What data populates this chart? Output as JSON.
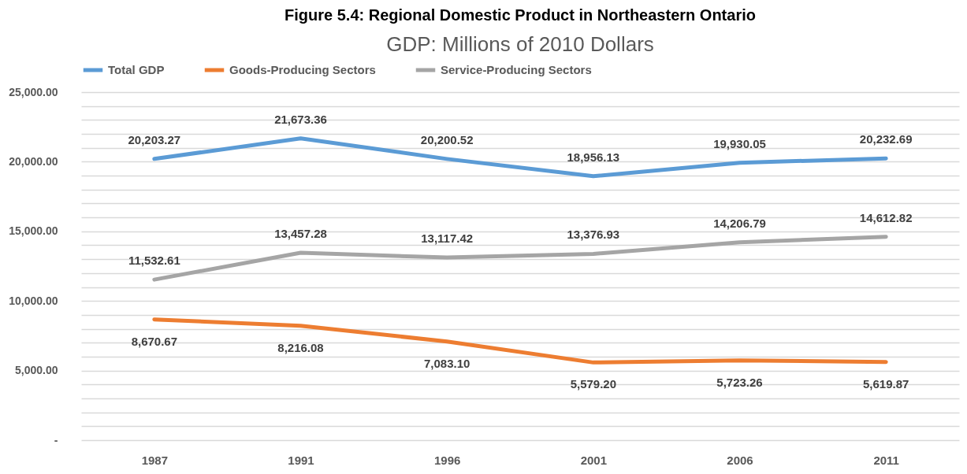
{
  "chart_data": {
    "type": "line",
    "title": "Figure 5.4: Regional Domestic Product in Northeastern Ontario",
    "subtitle": "GDP: Millions of 2010 Dollars",
    "categories": [
      "1987",
      "1991",
      "1996",
      "2001",
      "2006",
      "2011"
    ],
    "series": [
      {
        "name": "Total GDP",
        "color": "#5b9bd5",
        "values": [
          20203.27,
          21673.36,
          20200.52,
          18956.13,
          19930.05,
          20232.69
        ],
        "value_labels": [
          "20,203.27",
          "21,673.36",
          "20,200.52",
          "18,956.13",
          "19,930.05",
          "20,232.69"
        ]
      },
      {
        "name": "Goods-Producing Sectors",
        "color": "#ed7d31",
        "values": [
          8670.67,
          8216.08,
          7083.1,
          5579.2,
          5723.26,
          5619.87
        ],
        "value_labels": [
          "8,670.67",
          "8,216.08",
          "7,083.10",
          "5,579.20",
          "5,723.26",
          "5,619.87"
        ]
      },
      {
        "name": "Service-Producing Sectors",
        "color": "#a5a5a5",
        "values": [
          11532.61,
          13457.28,
          13117.42,
          13376.93,
          14206.79,
          14612.82
        ],
        "value_labels": [
          "11,532.61",
          "13,457.28",
          "13,117.42",
          "13,376.93",
          "14,206.79",
          "14,612.82"
        ]
      }
    ],
    "ylim": [
      0,
      25000
    ],
    "yticks": [
      {
        "value": 0,
        "label": "-"
      },
      {
        "value": 1000,
        "label": null
      },
      {
        "value": 2000,
        "label": null
      },
      {
        "value": 3000,
        "label": null
      },
      {
        "value": 4000,
        "label": null
      },
      {
        "value": 5000,
        "label": "5,000.00"
      },
      {
        "value": 6000,
        "label": null
      },
      {
        "value": 7000,
        "label": null
      },
      {
        "value": 8000,
        "label": null
      },
      {
        "value": 9000,
        "label": null
      },
      {
        "value": 10000,
        "label": "10,000.00"
      },
      {
        "value": 11000,
        "label": null
      },
      {
        "value": 12000,
        "label": null
      },
      {
        "value": 13000,
        "label": null
      },
      {
        "value": 14000,
        "label": null
      },
      {
        "value": 15000,
        "label": "15,000.00"
      },
      {
        "value": 16000,
        "label": null
      },
      {
        "value": 17000,
        "label": null
      },
      {
        "value": 18000,
        "label": null
      },
      {
        "value": 19000,
        "label": null
      },
      {
        "value": 20000,
        "label": "20,000.00"
      },
      {
        "value": 21000,
        "label": null
      },
      {
        "value": 22000,
        "label": null
      },
      {
        "value": 23000,
        "label": null
      },
      {
        "value": 24000,
        "label": null
      },
      {
        "value": 25000,
        "label": "25,000.00"
      }
    ],
    "grid": "y",
    "legend": "top",
    "data_labels": true,
    "marker": "none",
    "line_style": "solid"
  }
}
